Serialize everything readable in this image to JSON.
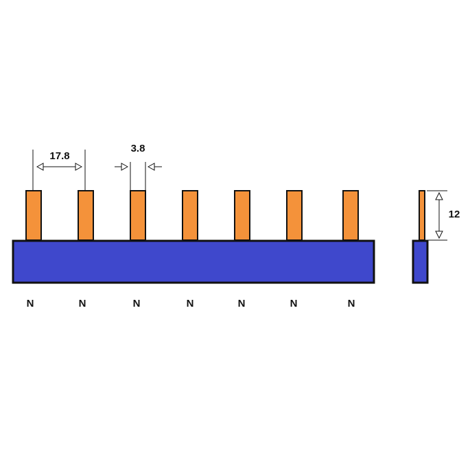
{
  "dimensions": {
    "pitch": "17.8",
    "pin_width": "3.8",
    "pin_height": "12"
  },
  "pins": [
    {
      "label": "N"
    },
    {
      "label": "N"
    },
    {
      "label": "N"
    },
    {
      "label": "N"
    },
    {
      "label": "N"
    },
    {
      "label": "N"
    },
    {
      "label": "N"
    }
  ]
}
